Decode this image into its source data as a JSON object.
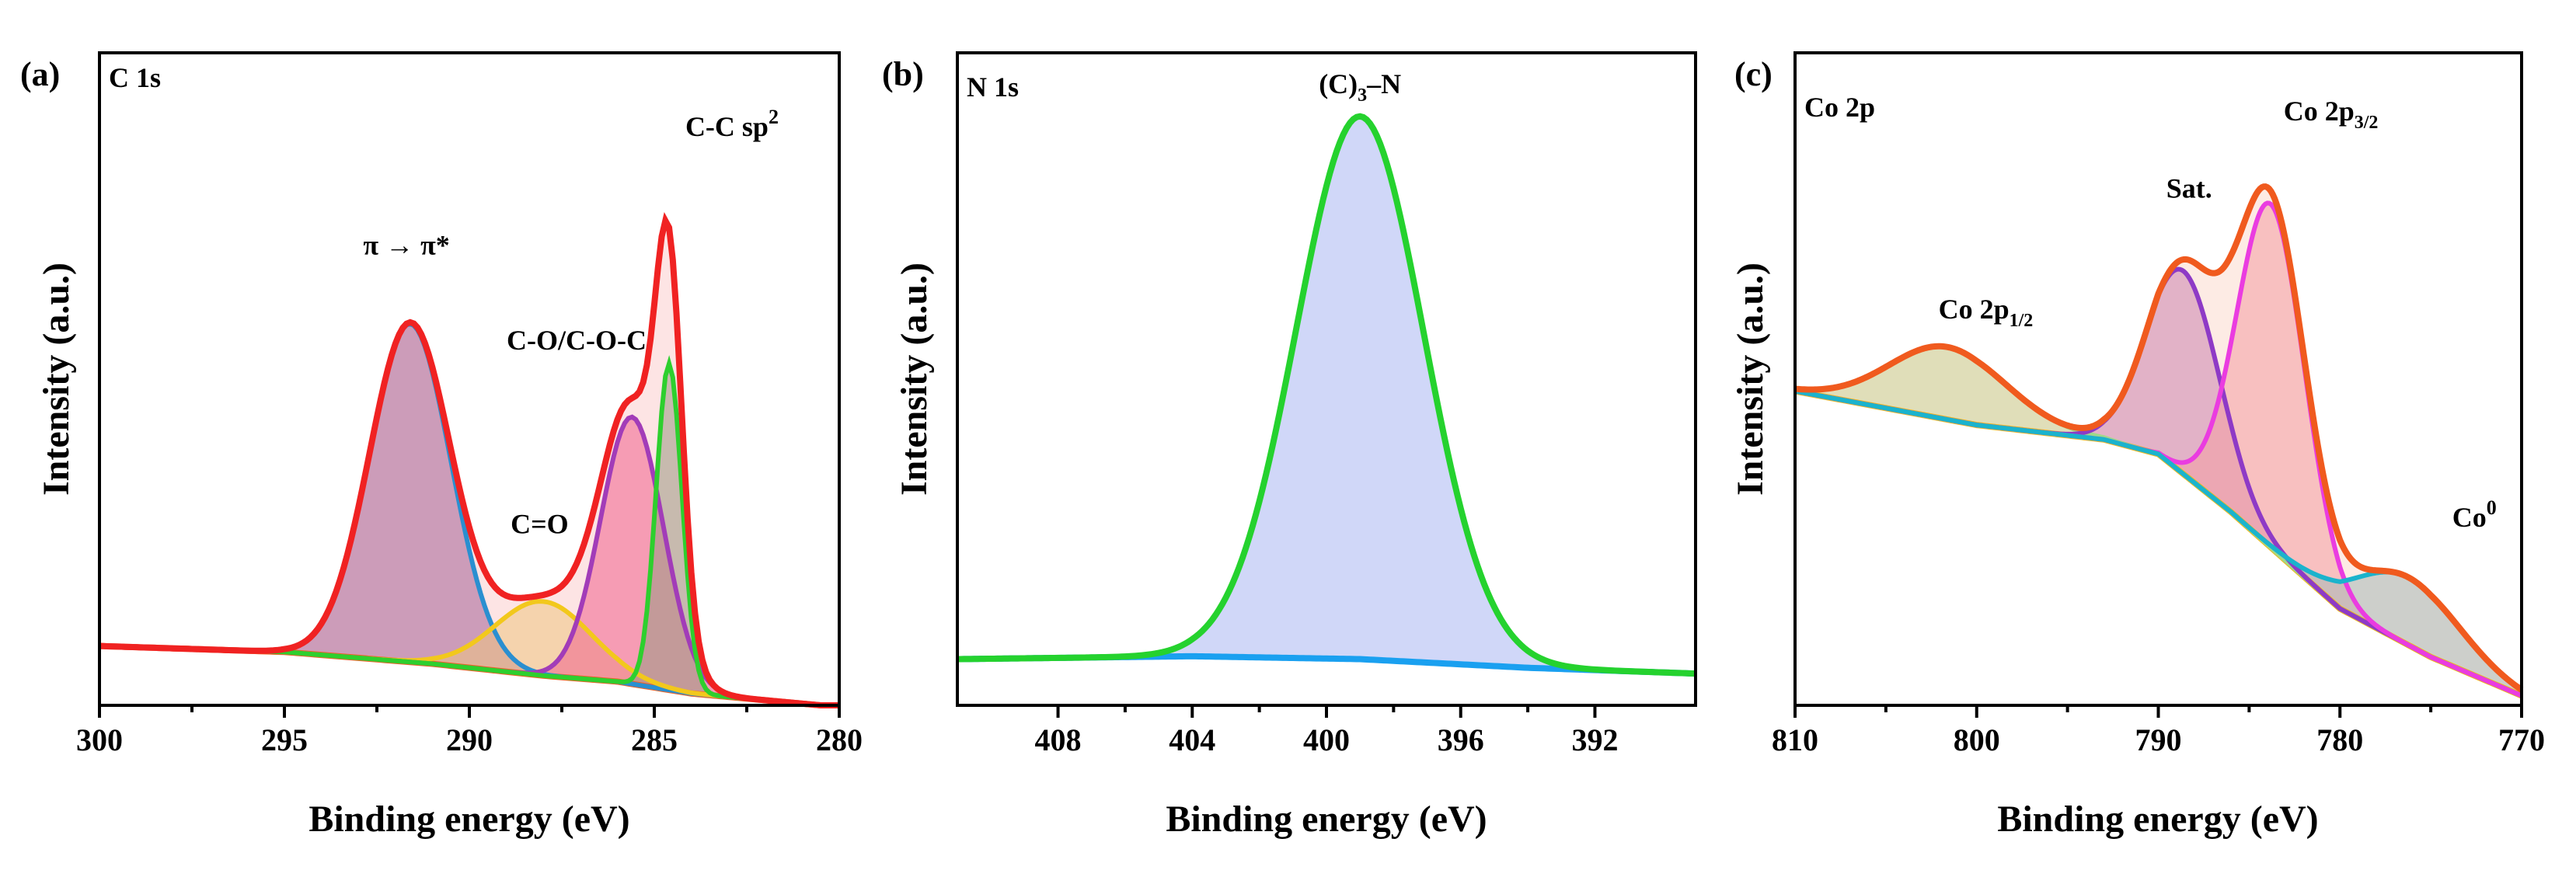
{
  "chart_data": [
    {
      "panel_label": "(a)",
      "title": "C 1s",
      "type": "line",
      "xlabel": "Binding energy (eV)",
      "ylabel": "Intensity (a.u.)",
      "xlim": [
        300,
        280
      ],
      "ylim": [
        -0.1,
        1.0
      ],
      "xticks": [
        "300",
        "295",
        "290",
        "285",
        "280"
      ],
      "x_step": 0.1,
      "background": {
        "x": [
          300,
          295,
          291,
          288,
          286,
          284,
          280.5
        ],
        "y": [
          0.0,
          -0.01,
          -0.03,
          -0.05,
          -0.06,
          -0.08,
          -0.1
        ]
      },
      "components": [
        {
          "name": "π → π*",
          "center": 291.6,
          "height": 0.57,
          "sigma": 1.1,
          "color": "#2a8fd0",
          "fill": "#9b69a8"
        },
        {
          "name": "C=O",
          "center": 288.0,
          "height": 0.125,
          "sigma": 1.3,
          "color": "#f2c81c",
          "fill": "#eedc8e"
        },
        {
          "name": "C-O/C-O-C",
          "center": 285.6,
          "height": 0.45,
          "sigma": 0.85,
          "color": "#a23cb8",
          "fill": "#f06b9c"
        },
        {
          "name": "C-C sp2",
          "center": 284.6,
          "height": 0.55,
          "sigma": 0.35,
          "color": "#2ecf2e",
          "fill": "#8faa8f"
        }
      ],
      "envelope_color": "#f02222",
      "background_color": "#f46020",
      "annotations": [
        {
          "text": "π → π*",
          "x": 291.7,
          "y": 0.66
        },
        {
          "text": "C=O",
          "x": 288.1,
          "y": 0.19
        },
        {
          "text": "C-O/C-O-C",
          "x": 287.1,
          "y": 0.5
        }
      ],
      "annotations_sup": [
        {
          "text": "C-C sp",
          "sup": "2",
          "x": 282.9,
          "y": 0.86
        }
      ]
    },
    {
      "panel_label": "(b)",
      "title": "N 1s",
      "type": "line",
      "xlabel": "Binding energy (eV)",
      "ylabel": "Intensity (a.u.)",
      "xlim": [
        411,
        389
      ],
      "ylim": [
        -0.08,
        1.05
      ],
      "xticks": [
        "408",
        "404",
        "400",
        "396",
        "392"
      ],
      "x_step": 0.1,
      "background": {
        "x": [
          411,
          404,
          399,
          394,
          389
        ],
        "y": [
          0.0,
          0.005,
          0.0,
          -0.015,
          -0.025
        ]
      },
      "components": [
        {
          "name": "(C)3–N",
          "center": 399.0,
          "height": 0.94,
          "sigma": 1.9,
          "color": "#25d22e",
          "fill": "#a9b7f3"
        }
      ],
      "envelope_color": "#25d22e",
      "background_color": "#1aa0f0",
      "annotations": [],
      "annotations_sub": [
        {
          "text": "(C)",
          "sub": "3",
          "tail": "–N",
          "x": 399.0,
          "y": 0.98
        }
      ]
    },
    {
      "panel_label": "(c)",
      "title": "Co 2p",
      "type": "line",
      "xlabel": "Binding energy (eV)",
      "ylabel": "Intensity (a.u.)",
      "xlim": [
        810,
        770
      ],
      "ylim": [
        -0.35,
        1.0
      ],
      "xticks": [
        "810",
        "800",
        "790",
        "780",
        "770"
      ],
      "x_step": 0.1,
      "background": {
        "x": [
          810,
          800,
          793,
          790,
          786,
          780,
          775,
          770
        ],
        "y": [
          0.3,
          0.23,
          0.2,
          0.17,
          0.05,
          -0.15,
          -0.25,
          -0.33
        ]
      },
      "components": [
        {
          "name": "Co 2p1/2",
          "center": 801.6,
          "height": 0.15,
          "sigma": 3.2,
          "color": "#9fd98a",
          "fill": "#c3e5a5"
        },
        {
          "name": "Sat.",
          "center": 788.6,
          "height": 0.42,
          "sigma": 2.0,
          "color": "#8e3ac6",
          "fill": "#c98bc3"
        },
        {
          "name": "Co 2p3/2",
          "center": 783.8,
          "height": 0.71,
          "sigma": 1.85,
          "color": "#ea3ce0",
          "fill": "#f5a8b6"
        },
        {
          "name": "Co0",
          "center": 776.2,
          "height": 0.14,
          "sigma": 2.8,
          "color": "#1bb3cc",
          "fill": "#9cc6cc"
        }
      ],
      "envelope_color": "#f05a1e",
      "background_color": "#f2b81a",
      "annotations": [
        {
          "text": "Sat.",
          "x": 788.3,
          "y": 0.7
        }
      ],
      "annotations_sub": [
        {
          "text": "Co 2p",
          "sub": "1/2",
          "tail": "",
          "x": 799.5,
          "y": 0.45
        },
        {
          "text": "Co 2p",
          "sub": "3/2",
          "tail": "",
          "x": 780.5,
          "y": 0.86
        }
      ],
      "annotations_sup": [
        {
          "text": "Co",
          "sup": "0",
          "x": 772.6,
          "y": 0.02
        }
      ]
    }
  ]
}
